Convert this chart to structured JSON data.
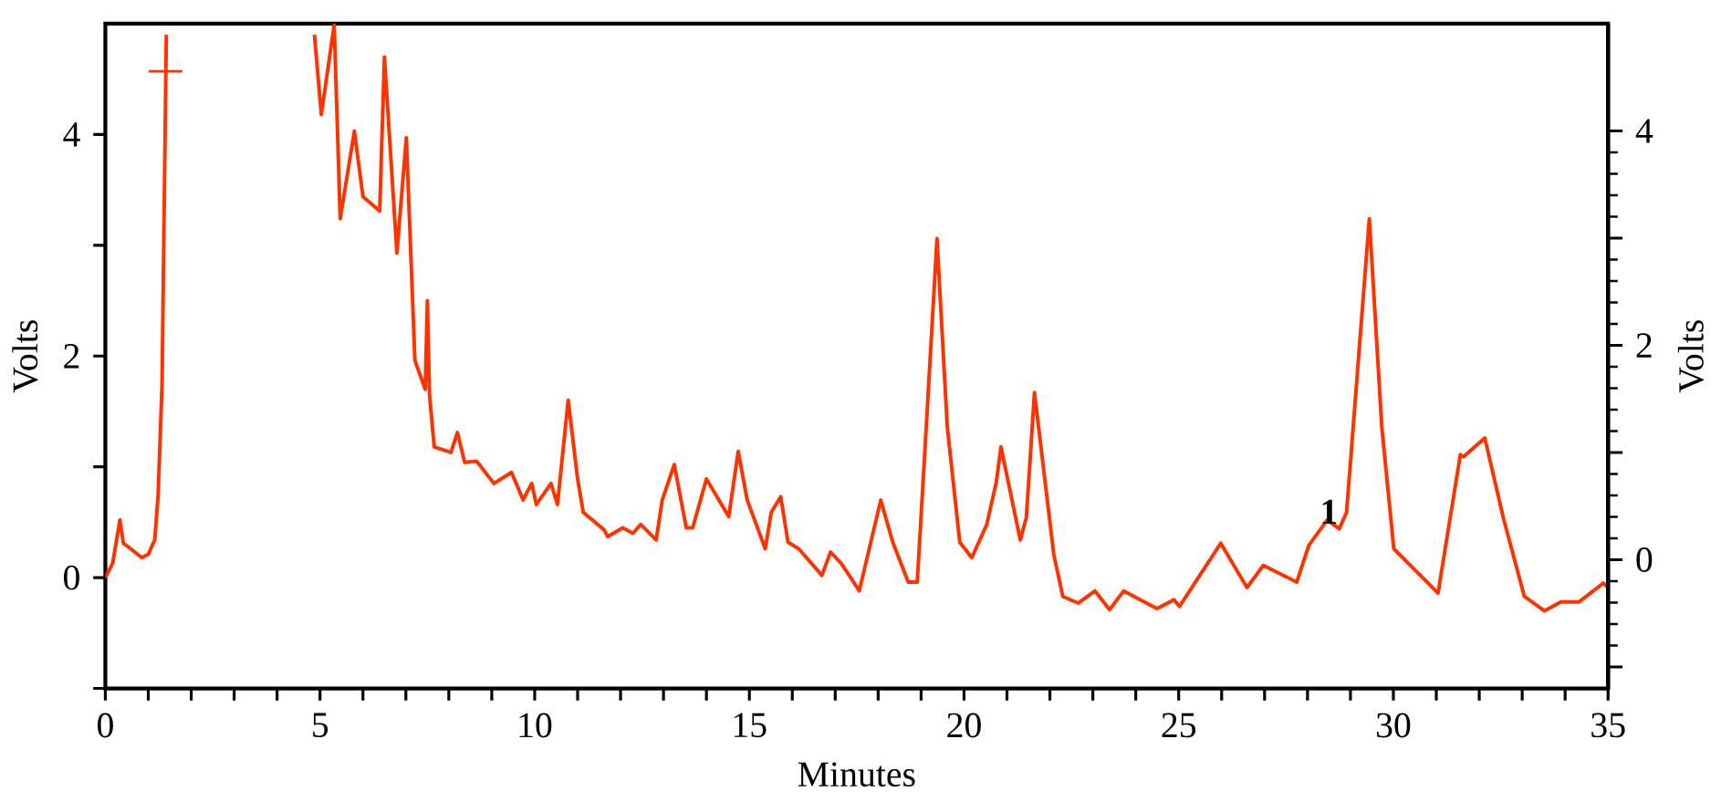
{
  "chart_data": {
    "type": "line",
    "xlabel": "Minutes",
    "ylabel": "Volts",
    "y2label": "Volts",
    "xlim": [
      0,
      35
    ],
    "ylim": [
      -1,
      5
    ],
    "y2lim": [
      -1.2,
      5
    ],
    "xticks": [
      0,
      {
        "value": 1,
        "label": null
      },
      {
        "value": 2,
        "label": null
      },
      {
        "value": 3,
        "label": null
      },
      {
        "value": 4,
        "label": null
      },
      5,
      {
        "value": 6,
        "label": null
      },
      {
        "value": 7,
        "label": null
      },
      {
        "value": 8,
        "label": null
      },
      {
        "value": 9,
        "label": null
      },
      10,
      {
        "value": 11,
        "label": null
      },
      {
        "value": 12,
        "label": null
      },
      {
        "value": 13,
        "label": null
      },
      {
        "value": 14,
        "label": null
      },
      15,
      {
        "value": 16,
        "label": null
      },
      {
        "value": 17,
        "label": null
      },
      {
        "value": 18,
        "label": null
      },
      {
        "value": 19,
        "label": null
      },
      20,
      {
        "value": 21,
        "label": null
      },
      {
        "value": 22,
        "label": null
      },
      {
        "value": 23,
        "label": null
      },
      {
        "value": 24,
        "label": null
      },
      25,
      {
        "value": 26,
        "label": null
      },
      {
        "value": 27,
        "label": null
      },
      {
        "value": 28,
        "label": null
      },
      {
        "value": 29,
        "label": null
      },
      30,
      {
        "value": 31,
        "label": null
      },
      {
        "value": 32,
        "label": null
      },
      {
        "value": 33,
        "label": null
      },
      {
        "value": 34,
        "label": null
      },
      35
    ],
    "yticks": [
      {
        "value": -1,
        "label": null
      },
      0,
      {
        "value": 1,
        "label": null
      },
      2,
      {
        "value": 3,
        "label": null
      },
      4
    ],
    "y2ticks": [
      {
        "value": -1,
        "label": null
      },
      0,
      {
        "value": 1,
        "label": null
      },
      2,
      {
        "value": 3,
        "label": null
      },
      4
    ],
    "grid": false,
    "line_style": "solid",
    "annotations": [
      {
        "text": "1",
        "x": 28.5,
        "y": 0.46
      }
    ],
    "series": [
      {
        "color": "#ff3300",
        "marker": "none",
        "x": [
          0,
          0.17,
          0.34,
          0.42,
          0.59,
          0.85,
          1.0,
          1.15,
          1.23,
          1.32,
          1.42,
          3.0,
          4.87,
          5.03,
          5.33,
          5.47,
          5.8,
          6.0,
          6.39,
          6.5,
          6.79,
          7.01,
          7.21,
          7.45,
          7.5,
          7.55,
          7.66,
          8.05,
          8.2,
          8.37,
          8.65,
          9.05,
          9.46,
          9.73,
          9.93,
          10.04,
          10.38,
          10.53,
          10.78,
          11.0,
          11.13,
          11.62,
          11.7,
          12.05,
          12.29,
          12.47,
          12.83,
          12.97,
          13.25,
          13.53,
          13.68,
          14.0,
          14.52,
          14.74,
          14.95,
          15.37,
          15.51,
          15.73,
          15.9,
          16.15,
          16.69,
          16.89,
          17.14,
          17.56,
          18.06,
          18.34,
          18.7,
          18.91,
          19.12,
          19.37,
          19.61,
          19.9,
          20.18,
          20.53,
          20.75,
          20.86,
          21.31,
          21.45,
          21.64,
          22.09,
          22.3,
          22.66,
          23.05,
          23.39,
          23.72,
          24.49,
          24.89,
          25.02,
          25.98,
          26.59,
          26.97,
          27.75,
          28.03,
          28.46,
          28.74,
          28.91,
          29.44,
          29.73,
          30.01,
          30.5,
          31.04,
          31.56,
          31.63,
          32.13,
          32.56,
          33.05,
          33.52,
          33.9,
          34.32,
          34.89,
          35
        ],
        "values": [
          0,
          0.13,
          0.52,
          0.31,
          0.26,
          0.18,
          0.21,
          0.34,
          0.75,
          1.74,
          4.9,
          null,
          4.9,
          4.18,
          4.99,
          3.24,
          4.03,
          3.44,
          3.31,
          4.7,
          2.93,
          3.97,
          1.96,
          1.7,
          2.5,
          1.65,
          1.18,
          1.13,
          1.31,
          1.04,
          1.05,
          0.85,
          0.95,
          0.7,
          0.85,
          0.66,
          0.85,
          0.66,
          1.6,
          0.89,
          0.59,
          0.43,
          0.37,
          0.45,
          0.4,
          0.48,
          0.34,
          0.7,
          1.02,
          0.45,
          0.45,
          0.89,
          0.55,
          1.14,
          0.7,
          0.26,
          0.59,
          0.73,
          0.32,
          0.26,
          0.02,
          0.23,
          0.13,
          -0.12,
          0.7,
          0.32,
          -0.04,
          -0.04,
          1.36,
          3.06,
          1.36,
          0.32,
          0.18,
          0.48,
          0.86,
          1.18,
          0.34,
          0.54,
          1.67,
          0.21,
          -0.17,
          -0.23,
          -0.12,
          -0.29,
          -0.12,
          -0.28,
          -0.2,
          -0.26,
          0.31,
          -0.09,
          0.11,
          -0.04,
          0.29,
          0.52,
          0.44,
          0.59,
          3.24,
          1.36,
          0.26,
          0.07,
          -0.14,
          1.11,
          1.09,
          1.26,
          0.54,
          -0.17,
          -0.3,
          -0.22,
          -0.22,
          -0.05,
          -0.09
        ]
      },
      {
        "type": "scatter",
        "color": "#ff3300",
        "marker": "cross",
        "x": [
          1.4
        ],
        "values": [
          4.57
        ]
      }
    ]
  }
}
